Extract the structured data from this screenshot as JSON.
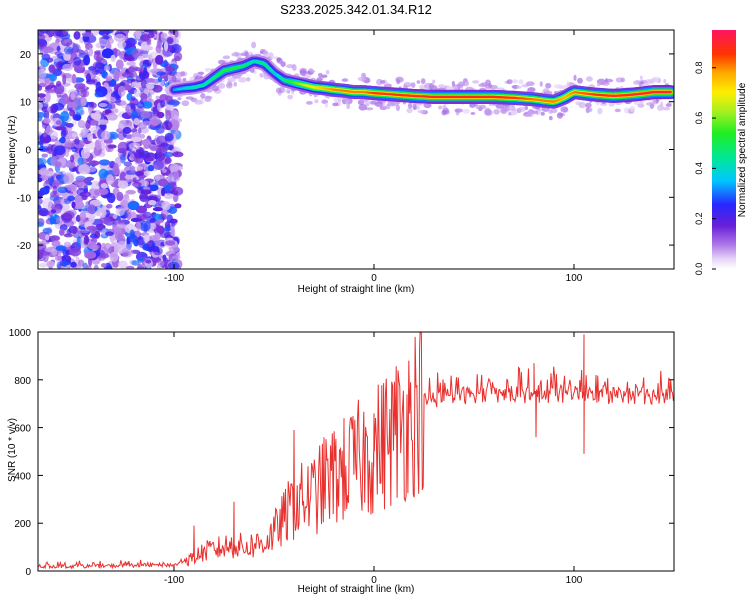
{
  "figure_title": "S233.2025.342.01.34.R12",
  "chart_data": [
    {
      "type": "heatmap",
      "title": "S233.2025.342.01.34.R12",
      "xlabel": "Height of straight line (km)",
      "ylabel": "Frequency (Hz)",
      "xlim": [
        -168,
        150
      ],
      "ylim": [
        -25,
        25
      ],
      "xticks": [
        -100,
        0,
        100
      ],
      "yticks": [
        -20,
        -10,
        0,
        10,
        20
      ],
      "colorbar": {
        "label": "Normalized spectral amplitude",
        "range": [
          0,
          0.95
        ],
        "ticks": [
          0.0,
          0.2,
          0.4,
          0.6,
          0.8
        ]
      },
      "noise_region_x": [
        -168,
        -98
      ],
      "ridge": {
        "x": [
          -100,
          -95,
          -90,
          -85,
          -80,
          -75,
          -70,
          -65,
          -60,
          -55,
          -50,
          -45,
          -40,
          -35,
          -30,
          -25,
          -20,
          -15,
          -10,
          -5,
          0,
          10,
          20,
          30,
          40,
          50,
          60,
          70,
          80,
          85,
          90,
          95,
          100,
          110,
          120,
          130,
          140,
          148
        ],
        "freq": [
          12.5,
          12.8,
          13,
          13.5,
          15,
          16.5,
          17,
          17.5,
          18.5,
          18,
          16,
          14.5,
          14,
          13.5,
          13,
          12.8,
          12.5,
          12.3,
          12,
          12,
          11.8,
          11.5,
          11.2,
          11,
          11,
          11,
          11,
          10.8,
          10.5,
          10.2,
          10,
          10.8,
          12,
          11.5,
          11.2,
          11.5,
          12,
          12
        ],
        "amplitude": [
          0.35,
          0.4,
          0.45,
          0.45,
          0.5,
          0.55,
          0.55,
          0.5,
          0.45,
          0.5,
          0.4,
          0.5,
          0.6,
          0.7,
          0.75,
          0.8,
          0.85,
          0.85,
          0.85,
          0.85,
          0.9,
          0.9,
          0.92,
          0.93,
          0.93,
          0.93,
          0.92,
          0.9,
          0.85,
          0.85,
          0.85,
          0.8,
          0.85,
          0.9,
          0.92,
          0.93,
          0.95,
          0.95
        ]
      }
    },
    {
      "type": "line",
      "xlabel": "Height of straight line (km)",
      "ylabel": "SNR (10 * v/v)",
      "xlim": [
        -168,
        150
      ],
      "ylim": [
        0,
        1000
      ],
      "xticks": [
        -100,
        0,
        100
      ],
      "yticks": [
        0,
        200,
        400,
        600,
        800,
        1000
      ],
      "color": "#e8302e",
      "series": [
        {
          "name": "SNR",
          "x": [
            -168,
            -140,
            -110,
            -100,
            -95,
            -90,
            -85,
            -80,
            -75,
            -70,
            -65,
            -60,
            -55,
            -50,
            -45,
            -40,
            -35,
            -30,
            -25,
            -20,
            -15,
            -10,
            -5,
            0,
            5,
            10,
            15,
            20,
            25,
            30,
            40,
            50,
            60,
            70,
            80,
            90,
            100,
            105,
            110,
            120,
            130,
            140,
            150
          ],
          "y": [
            20,
            20,
            25,
            25,
            40,
            60,
            80,
            90,
            100,
            110,
            100,
            110,
            120,
            160,
            220,
            280,
            300,
            320,
            360,
            400,
            420,
            450,
            480,
            500,
            540,
            580,
            620,
            680,
            710,
            720,
            730,
            740,
            740,
            740,
            740,
            740,
            740,
            745,
            740,
            735,
            735,
            735,
            740
          ],
          "spikes": [
            {
              "x": -90,
              "y": 190
            },
            {
              "x": -70,
              "y": 290
            },
            {
              "x": -40,
              "y": 590
            },
            {
              "x": -25,
              "y": 560
            },
            {
              "x": -15,
              "y": 600
            },
            {
              "x": 0,
              "y": 660
            },
            {
              "x": 80,
              "y": 870
            },
            {
              "x": 105,
              "y": 990
            },
            {
              "x": 105,
              "y": 490
            },
            {
              "x": 81,
              "y": 560
            }
          ]
        }
      ]
    }
  ]
}
